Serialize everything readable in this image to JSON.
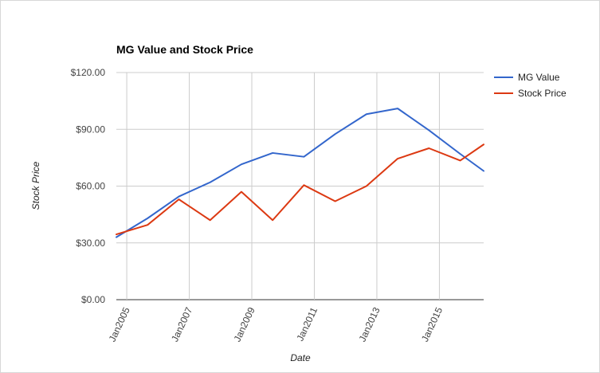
{
  "chart_data": {
    "type": "line",
    "title": "MG Value and Stock Price",
    "xlabel": "Date",
    "ylabel": "Stock Price",
    "x": [
      "2004-09",
      "2005-09",
      "2006-09",
      "2007-09",
      "2008-09",
      "2009-09",
      "2010-09",
      "2011-09",
      "2012-09",
      "2013-09",
      "2014-09",
      "2015-09",
      "2016-06"
    ],
    "x_ticks": [
      "2005-01",
      "2007-01",
      "2009-01",
      "2011-01",
      "2013-01",
      "2015-01"
    ],
    "x_tick_labels": [
      "Jan2005",
      "Jan2007",
      "Jan2009",
      "Jan2011",
      "Jan2013",
      "Jan2015"
    ],
    "xlim": [
      "2004-09",
      "2016-06"
    ],
    "ylim": [
      0,
      120
    ],
    "y_ticks": [
      0,
      30,
      60,
      90,
      120
    ],
    "y_tick_labels": [
      "$0.00",
      "$30.00",
      "$60.00",
      "$90.00",
      "$120.00"
    ],
    "grid": true,
    "legend": "right",
    "series": [
      {
        "name": "MG Value",
        "color": "#3366cc",
        "values": [
          33,
          43,
          54.5,
          62,
          71.5,
          77.5,
          75.5,
          87.5,
          98,
          101,
          89.5,
          77,
          68
        ]
      },
      {
        "name": "Stock Price",
        "color": "#dc3912",
        "values": [
          34.5,
          39.5,
          53,
          42,
          57,
          42,
          60.5,
          52,
          60,
          74.5,
          80,
          73.5,
          82
        ]
      }
    ]
  }
}
